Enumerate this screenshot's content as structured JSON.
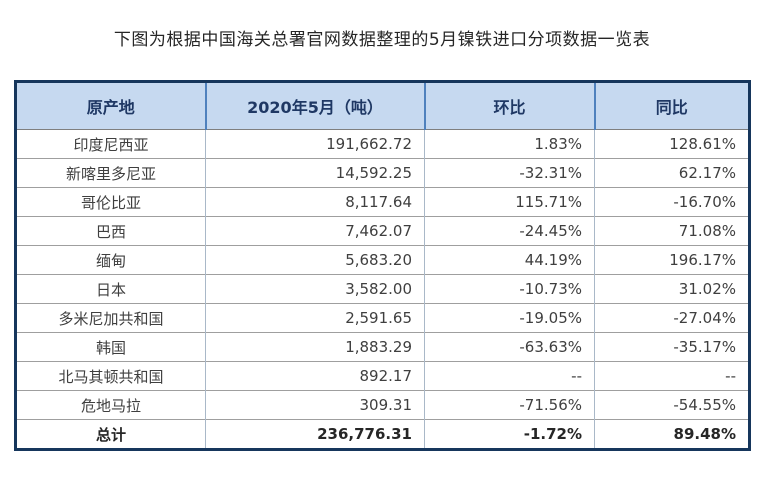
{
  "page": {
    "title": "下图为根据中国海关总署官网数据整理的5月镍铁进口分项数据一览表"
  },
  "colors": {
    "header_bg": "#c6d9f0",
    "header_text": "#1f3864",
    "outer_border": "#16365c",
    "header_divider": "#4f81bd",
    "body_text": "#3f3f3f"
  },
  "chart_data": {
    "type": "table",
    "title": "下图为根据中国海关总署官网数据整理的5月镍铁进口分项数据一览表",
    "columns": [
      "原产地",
      "2020年5月（吨）",
      "环比",
      "同比"
    ],
    "rows": [
      [
        "印度尼西亚",
        "191,662.72",
        "1.83%",
        "128.61%"
      ],
      [
        "新喀里多尼亚",
        "14,592.25",
        "-32.31%",
        "62.17%"
      ],
      [
        "哥伦比亚",
        "8,117.64",
        "115.71%",
        "-16.70%"
      ],
      [
        "巴西",
        "7,462.07",
        "-24.45%",
        "71.08%"
      ],
      [
        "缅甸",
        "5,683.20",
        "44.19%",
        "196.17%"
      ],
      [
        "日本",
        "3,582.00",
        "-10.73%",
        "31.02%"
      ],
      [
        "多米尼加共和国",
        "2,591.65",
        "-19.05%",
        "-27.04%"
      ],
      [
        "韩国",
        "1,883.29",
        "-63.63%",
        "-35.17%"
      ],
      [
        "北马其顿共和国",
        "892.17",
        "--",
        "--"
      ],
      [
        "危地马拉",
        "309.31",
        "-71.56%",
        "-54.55%"
      ],
      [
        "总计",
        "236,776.31",
        "-1.72%",
        "89.48%"
      ]
    ],
    "total_row_label": "总计",
    "layout": {
      "numeric_columns_right_aligned": true,
      "origin_column_centered": true,
      "last_row_bold": true
    }
  }
}
